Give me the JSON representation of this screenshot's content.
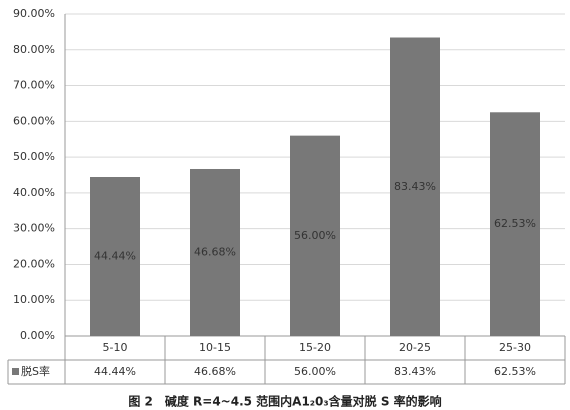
{
  "chart_data": {
    "type": "bar",
    "caption": "图 2　碱度 R=4~4.5 范围内A1₂0₃含量对脱 S 率的影响",
    "categories": [
      "5-10",
      "10-15",
      "15-20",
      "20-25",
      "25-30"
    ],
    "series": [
      {
        "name": "脱S率",
        "color": "#787878",
        "values": [
          44.44,
          46.68,
          56.0,
          83.43,
          62.53
        ],
        "value_labels": [
          "44.44%",
          "46.68%",
          "56.00%",
          "83.43%",
          "62.53%"
        ]
      }
    ],
    "ylim": [
      0,
      90
    ],
    "yticks": [
      {
        "value": 0,
        "label": "0.00%"
      },
      {
        "value": 10,
        "label": "10.00%"
      },
      {
        "value": 20,
        "label": "20.00%"
      },
      {
        "value": 30,
        "label": "30.00%"
      },
      {
        "value": 40,
        "label": "40.00%"
      },
      {
        "value": 50,
        "label": "50.00%"
      },
      {
        "value": 60,
        "label": "60.00%"
      },
      {
        "value": 70,
        "label": "70.00%"
      },
      {
        "value": 80,
        "label": "80.00%"
      },
      {
        "value": 90,
        "label": "90.00%"
      }
    ],
    "grid": true
  }
}
